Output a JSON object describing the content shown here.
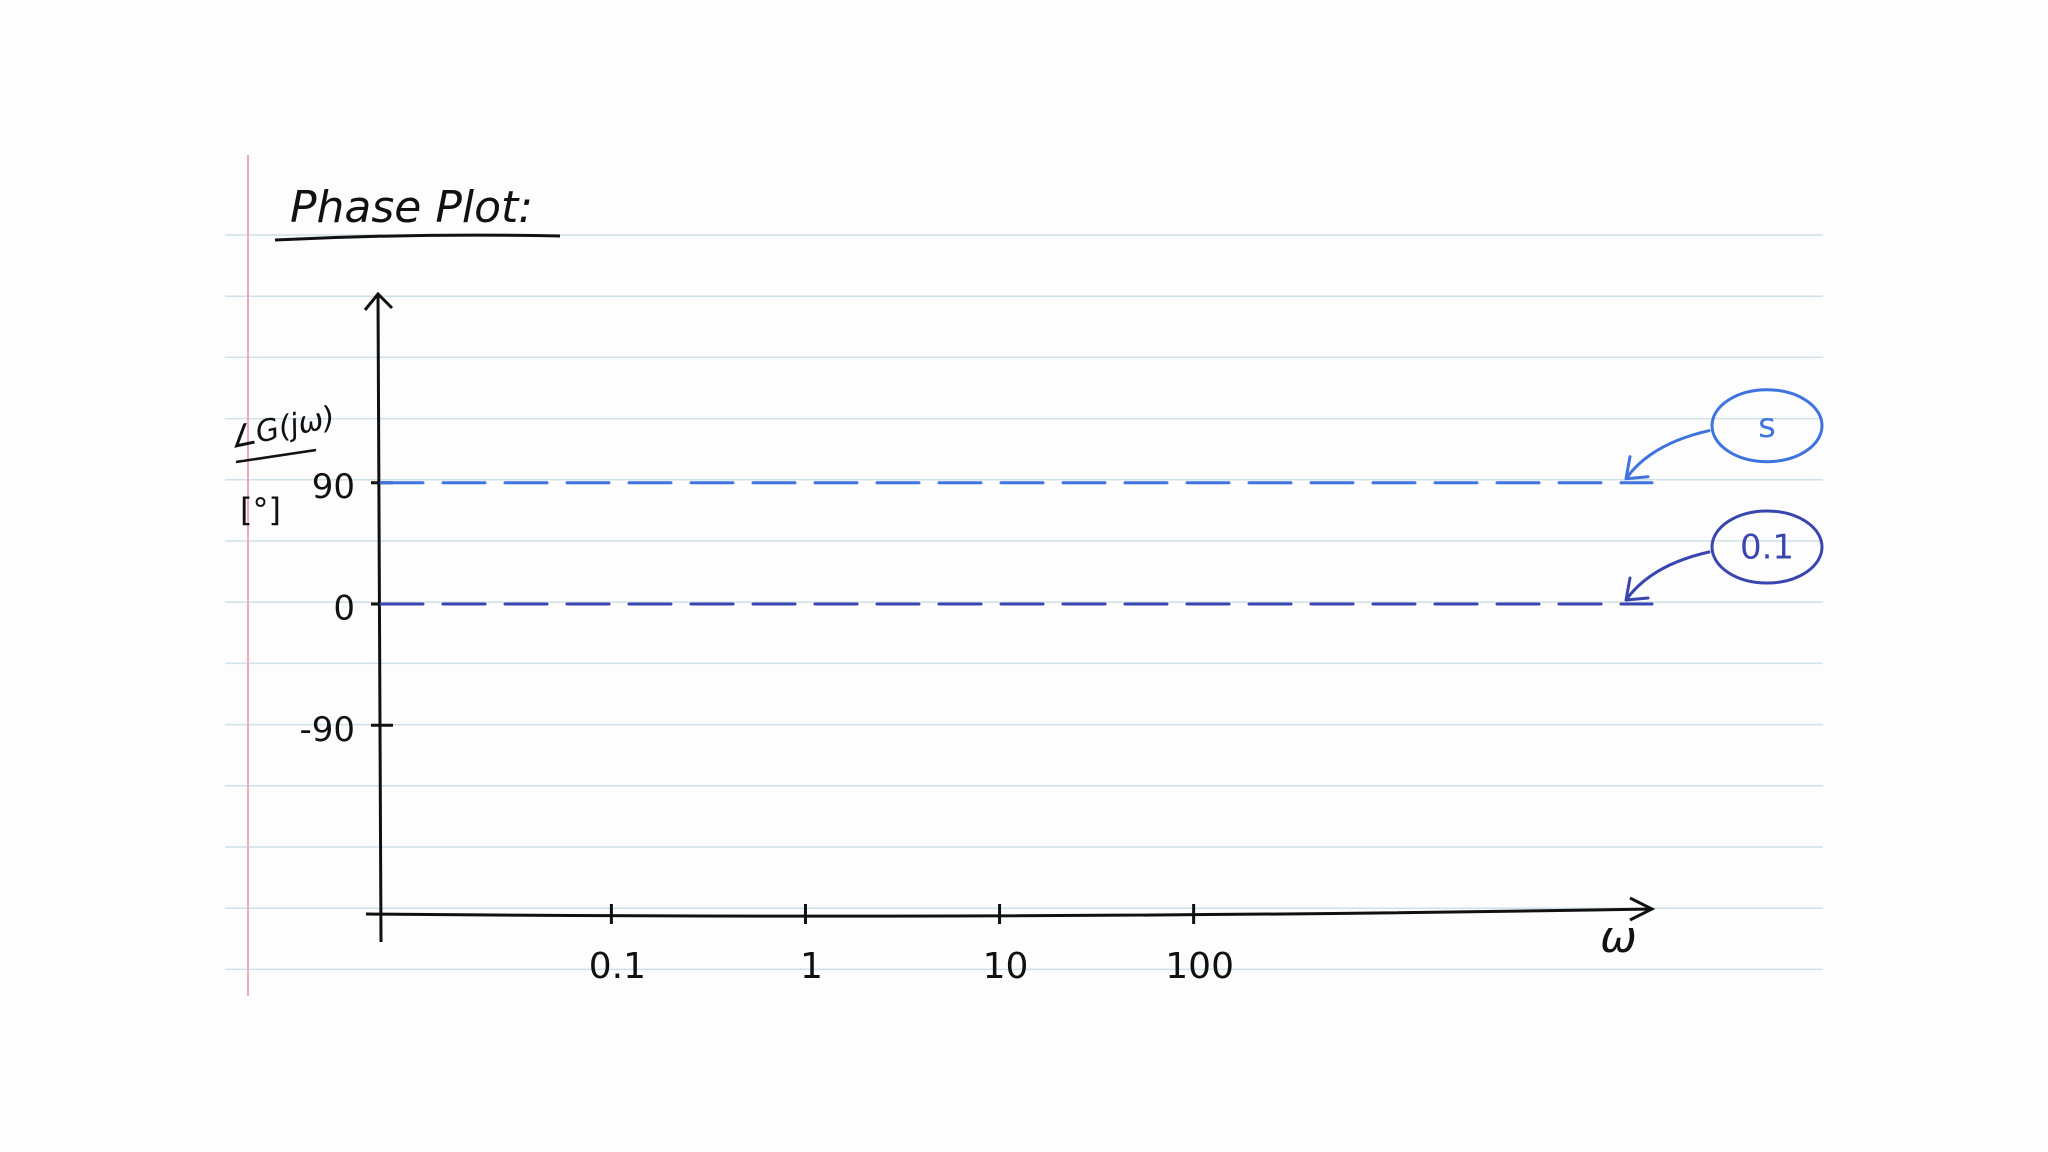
{
  "chart_data": {
    "type": "line",
    "title": "Phase Plot:",
    "y_label": "∠G(jω)",
    "y_unit": "[°]",
    "x_label": "ω",
    "xscale": "log",
    "x": [
      0.0065,
      23000
    ],
    "xlim": [
      0.0065,
      23000
    ],
    "xticks": [
      0.1,
      1,
      10,
      100
    ],
    "ylim": [
      -230,
      230
    ],
    "yticks": [
      -90,
      0,
      90
    ],
    "line_style": "dashed",
    "series": [
      {
        "name": "s",
        "color": "#3f74de",
        "values": [
          90,
          90
        ]
      },
      {
        "name": "0.1",
        "color": "#3a46b0",
        "values": [
          0,
          0
        ]
      }
    ]
  }
}
